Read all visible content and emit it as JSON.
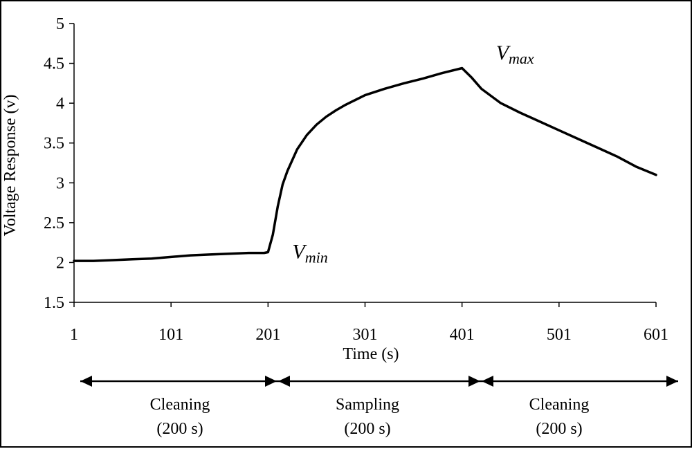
{
  "chart_data": {
    "type": "line",
    "title": "",
    "xlabel": "Time (s)",
    "ylabel": "Voltage Response (v)",
    "xlim": [
      1,
      601
    ],
    "ylim": [
      1.5,
      5
    ],
    "x_ticks": [
      "1",
      "101",
      "201",
      "301",
      "401",
      "501",
      "601"
    ],
    "y_ticks": [
      "1.5",
      "2",
      "2.5",
      "3",
      "3.5",
      "4",
      "4.5",
      "5"
    ],
    "grid": false,
    "legend": "none",
    "line_color": "#000000",
    "series": [
      {
        "x": [
          1,
          21,
          41,
          61,
          81,
          101,
          121,
          141,
          161,
          181,
          197,
          201,
          206,
          211,
          216,
          221,
          231,
          241,
          251,
          261,
          271,
          281,
          291,
          301,
          321,
          341,
          361,
          381,
          401,
          411,
          421,
          441,
          461,
          481,
          501,
          521,
          541,
          561,
          581,
          601
        ],
        "values": [
          2.02,
          2.02,
          2.03,
          2.04,
          2.05,
          2.07,
          2.09,
          2.1,
          2.11,
          2.12,
          2.12,
          2.13,
          2.35,
          2.7,
          2.98,
          3.15,
          3.42,
          3.6,
          3.73,
          3.83,
          3.91,
          3.98,
          4.04,
          4.1,
          4.18,
          4.25,
          4.31,
          4.38,
          4.44,
          4.32,
          4.18,
          4.0,
          3.88,
          3.77,
          3.66,
          3.55,
          3.44,
          3.33,
          3.2,
          3.1
        ]
      }
    ],
    "annotations": [
      {
        "main": "V",
        "sub": "min",
        "x": 226,
        "y": 2.05
      },
      {
        "main": "V",
        "sub": "max",
        "x": 436,
        "y": 4.55
      }
    ],
    "phases": [
      {
        "label": "Cleaning",
        "duration": "(200 s)"
      },
      {
        "label": "Sampling",
        "duration": "(200 s)"
      },
      {
        "label": "Cleaning",
        "duration": "(200 s)"
      }
    ]
  }
}
